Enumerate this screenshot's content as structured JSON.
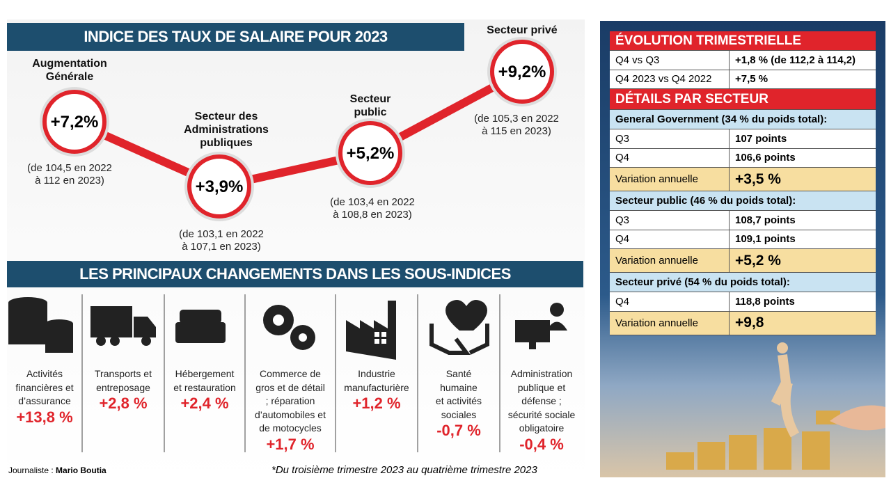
{
  "indices": {
    "title": "INDICE DES TAUX DE SALAIRE POUR 2023",
    "items": [
      {
        "label": [
          "Augmentation",
          "Générale"
        ],
        "value": "+7,2%",
        "detail": [
          "(de 104,5 en 2022",
          "à 112 en 2023)"
        ]
      },
      {
        "label": [
          "Secteur des",
          "Administrations",
          "publiques"
        ],
        "value": "+3,9%",
        "detail": [
          "(de 103,1 en 2022",
          "à 107,1 en 2023)"
        ]
      },
      {
        "label": [
          "Secteur",
          "public"
        ],
        "value": "+5,2%",
        "detail": [
          "(de 103,4 en 2022",
          "à 108,8 en 2023)"
        ]
      },
      {
        "label": [
          "Secteur privé"
        ],
        "value": "+9,2%",
        "detail": [
          "(de 105,3 en 2022",
          "à 115 en 2023)"
        ]
      }
    ]
  },
  "changes": {
    "title": "LES PRINCIPAUX CHANGEMENTS DANS LES SOUS-INDICES",
    "items": [
      {
        "label": [
          "Activités",
          "financières et",
          "d’assurance"
        ],
        "value": "+13,8 %"
      },
      {
        "label": [
          "Transports et",
          "entreposage"
        ],
        "value": "+2,8 %"
      },
      {
        "label": [
          "Hébergement",
          "et restauration"
        ],
        "value": "+2,4 %"
      },
      {
        "label": [
          "Commerce de",
          "gros et de détail",
          "; réparation",
          "d’automobiles et",
          "de motocycles"
        ],
        "value": "+1,7 %"
      },
      {
        "label": [
          "Industrie",
          "manufacturière"
        ],
        "value": "+1,2 %"
      },
      {
        "label": [
          "Santé",
          "humaine",
          "et activités",
          "sociales"
        ],
        "value": "-0,7 %"
      },
      {
        "label": [
          "Administration",
          "publique et",
          "défense ;",
          "sécurité sociale",
          "obligatoire"
        ],
        "value": "-0,4 %"
      }
    ]
  },
  "footer": {
    "journalist_label": "Journaliste :",
    "journalist": "Mario Boutia",
    "note": "*Du troisième trimestre 2023 au quatrième trimestre 2023"
  },
  "table": {
    "title": "ÉVOLUTION TRIMESTRIELLE",
    "rows": [
      [
        "Q4 vs Q3",
        "+1,8 % (de 112,2 à 114,2)"
      ],
      [
        "Q4 2023 vs Q4 2022",
        "+7,5 %"
      ]
    ],
    "details_title": "DÉTAILS PAR SECTEUR",
    "sectors": [
      {
        "name": "General Government (34 % du poids total):",
        "rows": [
          [
            "Q3",
            "107 points"
          ],
          [
            "Q4",
            "106,6 points"
          ]
        ],
        "variation": [
          "Variation annuelle",
          "+3,5 %"
        ]
      },
      {
        "name": "Secteur public (46 % du poids total):",
        "rows": [
          [
            "Q3",
            "108,7 points"
          ],
          [
            "Q4",
            "109,1 points"
          ]
        ],
        "variation": [
          "Variation annuelle",
          "+5,2 %"
        ]
      },
      {
        "name": "Secteur privé (54 % du poids total):",
        "rows": [
          [
            "Q4",
            "118,8 points"
          ]
        ],
        "variation": [
          "Variation annuelle",
          "+9,8"
        ]
      }
    ]
  }
}
